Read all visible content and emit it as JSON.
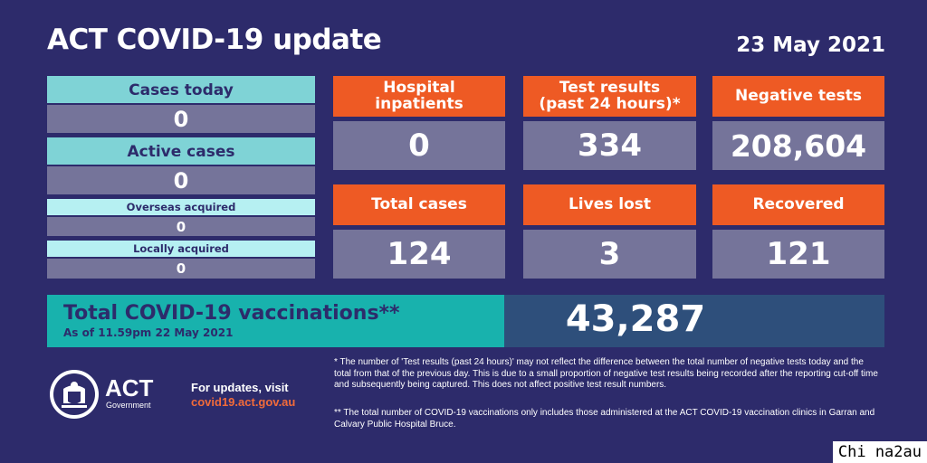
{
  "header": {
    "title": "ACT COVID-19 update",
    "date": "23 May 2021"
  },
  "left_stats": {
    "cases_today": {
      "label": "Cases today",
      "value": "0"
    },
    "active_cases": {
      "label": "Active cases",
      "value": "0"
    },
    "overseas_acquired": {
      "label": "Overseas acquired",
      "value": "0"
    },
    "locally_acquired": {
      "label": "Locally acquired",
      "value": "0"
    }
  },
  "tiles": {
    "hospital": {
      "label_line1": "Hospital",
      "label_line2": "inpatients",
      "value": "0"
    },
    "test_results": {
      "label_line1": "Test results",
      "label_line2": "(past 24 hours)*",
      "value": "334"
    },
    "negative_tests": {
      "label": "Negative tests",
      "value": "208,604"
    },
    "total_cases": {
      "label": "Total cases",
      "value": "124"
    },
    "lives_lost": {
      "label": "Lives lost",
      "value": "3"
    },
    "recovered": {
      "label": "Recovered",
      "value": "121"
    }
  },
  "vaccinations": {
    "label": "Total COVID-19 vaccinations**",
    "as_of": "As of 11.59pm 22 May 2021",
    "value": "43,287"
  },
  "footer": {
    "logo_text": "ACT",
    "logo_sub": "Government",
    "updates_line1": "For updates, visit",
    "updates_url": "covid19.act.gov.au",
    "note1": "* The number of 'Test results (past 24 hours)' may not reflect the difference between the total number of negative tests today and the total from that of the previous day. This is due to a small proportion of negative test results being recorded after the reporting cut-off time and subsequently being captured. This does not affect positive test result numbers.",
    "note2": "** The total number of COVID-19 vaccinations only includes those administered at the ACT COVID-19 vaccination clinics in Garran and Calvary Public Hospital Bruce.",
    "watermark": "Chi na2au"
  },
  "colors": {
    "background": "#2d2b6b",
    "light_blue": "#7fd3d6",
    "pale_blue": "#b6f0f2",
    "grey": "#75749a",
    "orange": "#ee5a24",
    "teal": "#18b2ad",
    "steel_blue": "#2e4f7b",
    "link_orange": "#f26b3a"
  }
}
